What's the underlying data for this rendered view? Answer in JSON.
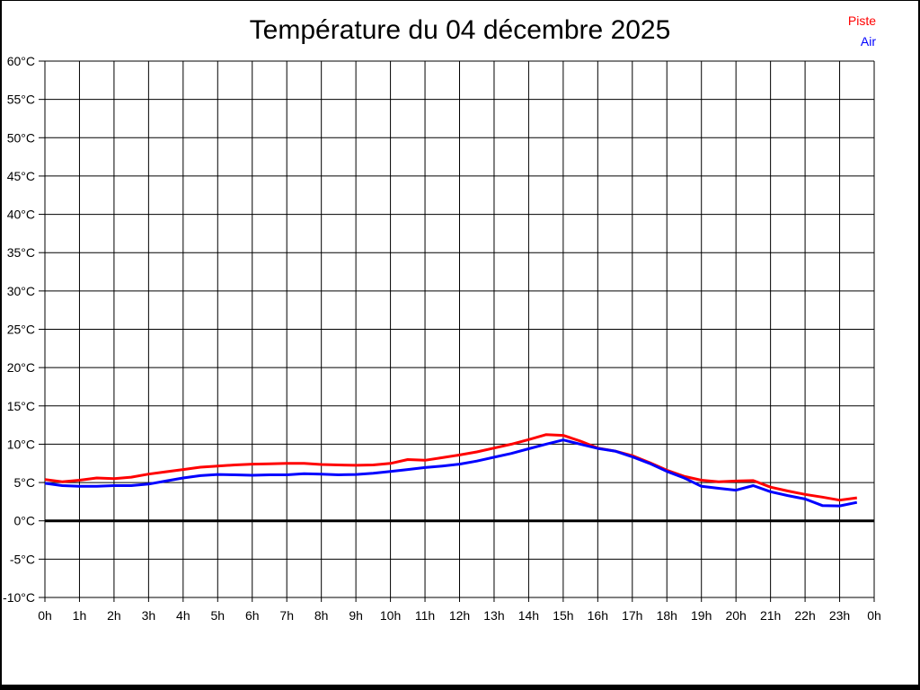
{
  "page": {
    "title": "Température du 04 décembre 2025"
  },
  "legend": {
    "items": [
      {
        "label": "Piste",
        "color": "#ff0000"
      },
      {
        "label": "Air",
        "color": "#0000ff"
      }
    ]
  },
  "colors": {
    "piste_line": "#ff0000",
    "air_line": "#0000ff",
    "grid": "#000000",
    "zero_line": "#000000",
    "background": "#ffffff",
    "text": "#000000"
  },
  "chart_data": {
    "type": "line",
    "title": "Température du 04 décembre 2025",
    "xlabel": "",
    "ylabel": "",
    "xlim": [
      0,
      24
    ],
    "ylim": [
      -10,
      60
    ],
    "grid": true,
    "zero_line_bold": true,
    "legend_position": "top-right",
    "x_ticks": [
      0,
      1,
      2,
      3,
      4,
      5,
      6,
      7,
      8,
      9,
      10,
      11,
      12,
      13,
      14,
      15,
      16,
      17,
      18,
      19,
      20,
      21,
      22,
      23,
      24
    ],
    "x_tick_labels": [
      "0h",
      "1h",
      "2h",
      "3h",
      "4h",
      "5h",
      "6h",
      "7h",
      "8h",
      "9h",
      "10h",
      "11h",
      "12h",
      "13h",
      "14h",
      "15h",
      "16h",
      "17h",
      "18h",
      "19h",
      "20h",
      "21h",
      "22h",
      "23h",
      "0h"
    ],
    "y_ticks": [
      60,
      55,
      50,
      45,
      40,
      35,
      30,
      25,
      20,
      15,
      10,
      5,
      0,
      -5,
      -10
    ],
    "y_tick_labels": [
      "60°C",
      "55°C",
      "50°C",
      "45°C",
      "40°C",
      "35°C",
      "30°C",
      "25°C",
      "20°C",
      "15°C",
      "10°C",
      "5°C",
      "0°C",
      "-5°C",
      "-10°C"
    ],
    "x": [
      0,
      0.5,
      1,
      1.5,
      2,
      2.5,
      3,
      3.5,
      4,
      4.5,
      5,
      5.5,
      6,
      6.5,
      7,
      7.5,
      8,
      8.5,
      9,
      9.5,
      10,
      10.5,
      11,
      11.5,
      12,
      12.5,
      13,
      13.5,
      14,
      14.5,
      15,
      15.5,
      16,
      16.5,
      17,
      17.5,
      18,
      18.5,
      19,
      19.5,
      20,
      20.5,
      21,
      21.5,
      22,
      22.5,
      23,
      23.5
    ],
    "series": [
      {
        "name": "Piste",
        "color": "#ff0000",
        "values": [
          5.4,
          5.1,
          5.3,
          5.6,
          5.5,
          5.7,
          6.1,
          6.4,
          6.7,
          7.0,
          7.15,
          7.3,
          7.4,
          7.45,
          7.5,
          7.5,
          7.35,
          7.3,
          7.25,
          7.3,
          7.5,
          8.0,
          7.9,
          8.25,
          8.6,
          9.0,
          9.5,
          10.0,
          10.6,
          11.25,
          11.15,
          10.4,
          9.5,
          9.1,
          8.5,
          7.6,
          6.6,
          5.8,
          5.3,
          5.1,
          5.2,
          5.25,
          4.4,
          3.9,
          3.45,
          3.1,
          2.7,
          3.0
        ]
      },
      {
        "name": "Air",
        "color": "#0000ff",
        "values": [
          4.9,
          4.6,
          4.5,
          4.5,
          4.6,
          4.6,
          4.8,
          5.2,
          5.6,
          5.9,
          6.05,
          6.0,
          5.95,
          6.0,
          6.0,
          6.15,
          6.1,
          6.0,
          6.05,
          6.2,
          6.45,
          6.7,
          6.95,
          7.15,
          7.4,
          7.8,
          8.3,
          8.8,
          9.4,
          10.0,
          10.55,
          10.0,
          9.45,
          9.1,
          8.35,
          7.5,
          6.45,
          5.6,
          4.5,
          4.25,
          4.0,
          4.6,
          3.8,
          3.3,
          2.85,
          2.0,
          1.95,
          2.4
        ]
      }
    ]
  }
}
